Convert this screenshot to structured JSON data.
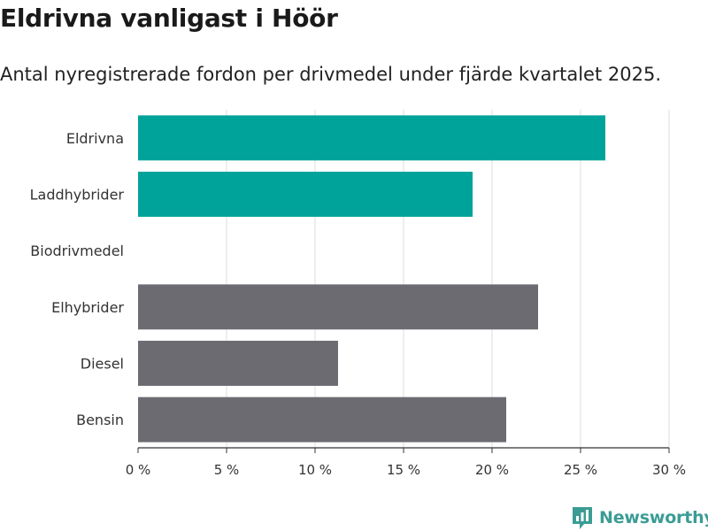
{
  "header": {
    "title": "Eldrivna vanligast i Höör",
    "subtitle": "Antal nyregistrerade fordon per drivmedel under fjärde kvartalet 2025."
  },
  "brand": {
    "name": "Newsworthy",
    "color": "#3b9c95"
  },
  "chart_data": {
    "type": "bar",
    "orientation": "horizontal",
    "title": "Eldrivna vanligast i Höör",
    "subtitle": "Antal nyregistrerade fordon per drivmedel under fjärde kvartalet 2025.",
    "xlabel": "",
    "ylabel": "",
    "xlim": [
      0,
      30
    ],
    "x_ticks": [
      0,
      5,
      10,
      15,
      20,
      25,
      30
    ],
    "x_tick_labels": [
      "0 %",
      "5 %",
      "10 %",
      "15 %",
      "20 %",
      "25 %",
      "30 %"
    ],
    "grid": true,
    "categories": [
      "Eldrivna",
      "Laddhybrider",
      "Biodrivmedel",
      "Elhybrider",
      "Diesel",
      "Bensin"
    ],
    "values": [
      26.4,
      18.9,
      0,
      22.6,
      11.3,
      20.8
    ],
    "colors": [
      "#00a39a",
      "#00a39a",
      "#00a39a",
      "#6d6b72",
      "#6d6b72",
      "#6d6b72"
    ]
  }
}
